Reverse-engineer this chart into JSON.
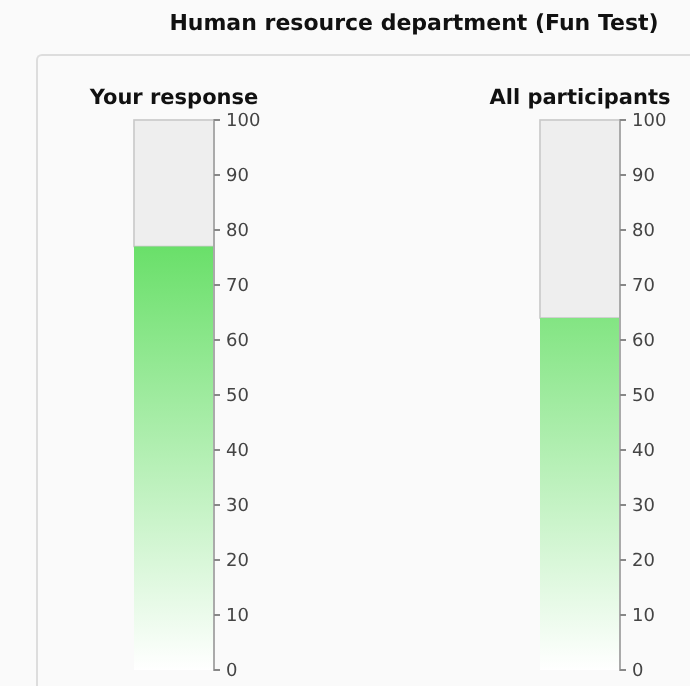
{
  "chart_data": [
    {
      "type": "bar",
      "title": "Human resource department (Fun Test)",
      "categories": [
        "Your response"
      ],
      "values": [
        77
      ],
      "color": "#3dd63d",
      "ylim": [
        0,
        100
      ],
      "yticks": [
        0,
        10,
        20,
        30,
        40,
        50,
        60,
        70,
        80,
        90,
        100
      ]
    },
    {
      "type": "bar",
      "categories": [
        "All participants"
      ],
      "values": [
        64
      ],
      "color": "#3dd63d",
      "ylim": [
        0,
        100
      ],
      "yticks": [
        0,
        10,
        20,
        30,
        40,
        50,
        60,
        70,
        80,
        90,
        100
      ]
    }
  ]
}
